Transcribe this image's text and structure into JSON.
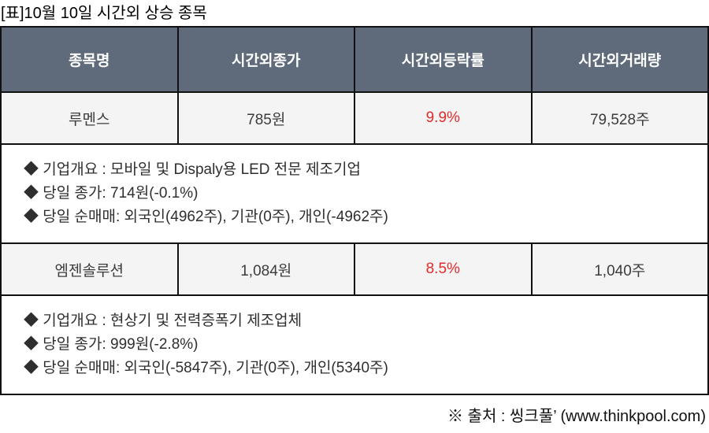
{
  "title": "[표]10월 10일 시간외 상승 종목",
  "table": {
    "headers": [
      "종목명",
      "시간외종가",
      "시간외등락률",
      "시간외거래량"
    ],
    "rows": [
      {
        "name": "루멘스",
        "price": "785원",
        "change": "9.9%",
        "volume": "79,528주",
        "details": [
          "◆ 기업개요 : 모바일 및 Dispaly용 LED 전문 제조기업",
          "◆ 당일 종가: 714원(-0.1%)",
          "◆ 당일 순매매: 외국인(4962주), 기관(0주), 개인(-4962주)"
        ]
      },
      {
        "name": "엠젠솔루션",
        "price": "1,084원",
        "change": "8.5%",
        "volume": "1,040주",
        "details": [
          "◆ 기업개요 : 현상기 및 전력증폭기 제조업체",
          "◆ 당일 종가: 999원(-2.8%)",
          "◆ 당일 순매매: 외국인(-5847주), 기관(0주), 개인(5340주)"
        ]
      }
    ]
  },
  "footer": {
    "source": "※ 출처 : 씽크풀’ (www.thinkpool.com)"
  },
  "colors": {
    "header_bg": "#5f6b7a",
    "change_red": "#e02b2b",
    "row_bg": "#f4f4f4",
    "border": "#111111"
  }
}
